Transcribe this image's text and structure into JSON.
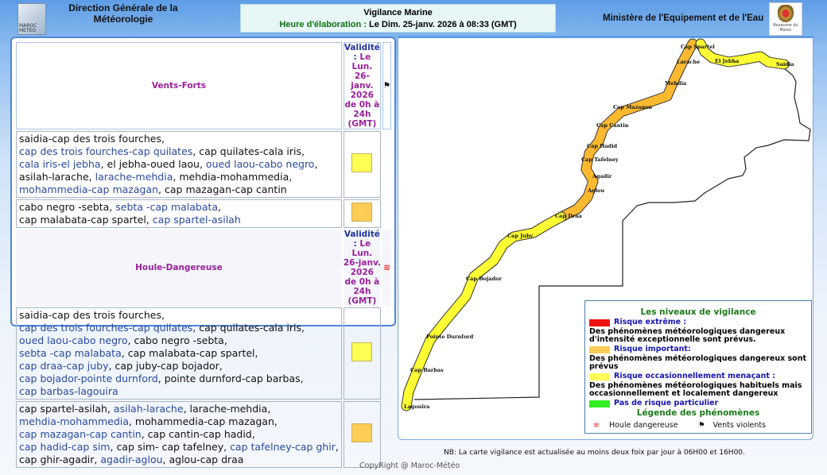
{
  "header": {
    "org_line1": "Direction Générale de la",
    "org_line2": "Météorologie",
    "logo_text": "MAROC METEO",
    "title": "Vigilance Marine",
    "elab_label": "Heure d'élaboration :",
    "elab_value": " Le Dim. 25-janv. 2026 à 08:33 (GMT)",
    "ministry": "Ministère de l'Equipement et de l'Eau",
    "crest_text": "Royaume du Maroc"
  },
  "colors": {
    "yellow": "#ffff55",
    "orange": "#ffcc55",
    "red": "#ee1111",
    "green": "#33ee22",
    "coast_orange": "#fbb930",
    "coast_yellow": "#ffff33"
  },
  "sections": [
    {
      "name": "Vents-Forts",
      "validity_label": "Validité :",
      "validity_value": " Le Lun. 26-janv. 2026 de 0h à 24h (GMT)",
      "icon": "wind-flag-icon",
      "blocks": [
        {
          "level": "yellow",
          "lines": [
            [
              "saidia-cap des trois fourches"
            ],
            [
              "cap des trois fourches-cap quilates",
              "cap quilates-cala iris"
            ],
            [
              "cala iris-el jebha",
              "el jebha-oued laou",
              "oued laou-cabo negro"
            ],
            [
              "asilah-larache",
              "larache-mehdia",
              "mehdia-mohammedia"
            ],
            [
              "mohammedia-cap mazagan",
              "cap mazagan-cap cantin"
            ]
          ]
        },
        {
          "level": "orange",
          "lines": [
            [
              "cabo negro -sebta",
              "sebta -cap malabata"
            ],
            [
              "cap malabata-cap spartel",
              "cap spartel-asilah"
            ]
          ]
        }
      ]
    },
    {
      "name": "Houle-Dangereuse",
      "validity_label": "Validité :",
      "validity_value": " Le Lun. 26-janv. 2026 de 0h à 24h (GMT)",
      "icon": "wave-icon",
      "blocks": [
        {
          "level": "yellow",
          "lines": [
            [
              "saidia-cap des trois fourches"
            ],
            [
              "cap des trois fourches-cap quilates",
              "cap quilates-cala iris"
            ],
            [
              "oued laou-cabo negro",
              "cabo negro -sebta"
            ],
            [
              "sebta -cap malabata",
              "cap malabata-cap spartel"
            ],
            [
              "cap draa-cap juby",
              "cap juby-cap bojador"
            ],
            [
              "cap bojador-pointe durnford",
              "pointe durnford-cap barbas"
            ],
            [
              "cap barbas-lagouira"
            ]
          ]
        },
        {
          "level": "orange",
          "lines": [
            [
              "cap spartel-asilah",
              "asilah-larache",
              "larache-mehdia"
            ],
            [
              "mehdia-mohammedia",
              "mohammedia-cap mazagan"
            ],
            [
              "cap mazagan-cap cantin",
              "cap cantin-cap hadid"
            ],
            [
              "cap hadid-cap sim",
              "cap sim- cap tafelney",
              "cap tafelney-cap ghir"
            ],
            [
              "cap ghir-agadir",
              "agadir-aglou",
              "aglou-cap draa"
            ]
          ]
        }
      ]
    }
  ],
  "map_labels": [
    "Cap Spartel",
    "El Jebha",
    "Saidia",
    "Larache",
    "Mehdia",
    "Cap Mazagan",
    "Cap Cantin",
    "Cap Hadid",
    "Cap Tafelney",
    "Agadir",
    "Aglou",
    "Cap Draa",
    "Cap Juby",
    "Cap Bojador",
    "Pointe Durnford",
    "Cap Barbas",
    "Lagouira"
  ],
  "legend": {
    "title": "Les niveaux de vigilance",
    "levels": [
      {
        "label": "Risque extrême :",
        "desc": "Des phénomènes météorologiques dangereux d'intensité exceptionnelle sont prévus.",
        "color": "red"
      },
      {
        "label": "Risque important:",
        "desc": "Des phénomènes météorologiques dangereux sont prévus",
        "color": "orange"
      },
      {
        "label": "Risque occasionnellement menaçant :",
        "desc": "Des phénomènes météorologiques habituels mais occasionnellement et localement dangereux",
        "color": "yellow"
      },
      {
        "label": "Pas de risque particulier",
        "desc": "",
        "color": "green"
      }
    ],
    "phen_title": "Légende des phénomènes",
    "houle": "Houle dangereuse",
    "vents": "Vents violents"
  },
  "footer": {
    "nb": "NB: La carte vigilance est actualisée au moins deux foix par jour à 06H00 et 16H00.",
    "copyright": "CopyRight @ Maroc-Météo"
  }
}
